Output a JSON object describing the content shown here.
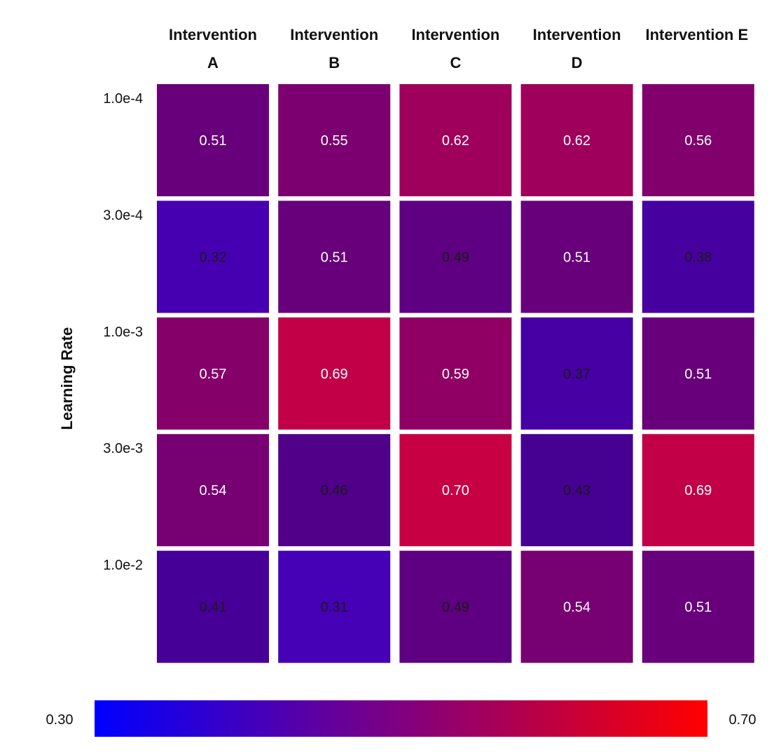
{
  "chart_data": {
    "type": "heatmap",
    "title": "",
    "xlabel": "",
    "ylabel": "Learning Rate",
    "columns": [
      "Intervention A",
      "Intervention B",
      "Intervention C",
      "Intervention D",
      "Intervention E"
    ],
    "rows": [
      "1.0e-4",
      "3.0e-4",
      "1.0e-3",
      "3.0e-3",
      "1.0e-2"
    ],
    "values": [
      [
        0.51,
        0.55,
        0.62,
        0.62,
        0.56
      ],
      [
        0.32,
        0.51,
        0.49,
        0.51,
        0.38
      ],
      [
        0.57,
        0.69,
        0.59,
        0.37,
        0.51
      ],
      [
        0.54,
        0.46,
        0.7,
        0.43,
        0.69
      ],
      [
        0.41,
        0.31,
        0.49,
        0.54,
        0.51
      ]
    ],
    "value_labels": [
      [
        "0.51",
        "0.55",
        "0.62",
        "0.62",
        "0.56"
      ],
      [
        "0.32",
        "0.51",
        "0.49",
        "0.51",
        "0.38"
      ],
      [
        "0.57",
        "0.69",
        "0.59",
        "0.37",
        "0.51"
      ],
      [
        "0.54",
        "0.46",
        "0.70",
        "0.43",
        "0.69"
      ],
      [
        "0.41",
        "0.31",
        "0.49",
        "0.54",
        "0.51"
      ]
    ],
    "vmin": 0.3,
    "vmax": 0.7,
    "colorbar": {
      "min_label": "0.30",
      "max_label": "0.70",
      "low_color": "#0000ff",
      "high_color": "#ff0000",
      "placement": "bottom"
    },
    "dark_text_threshold": 0.5,
    "text_color_light": "#ffffff",
    "text_color_dark": "#1a1a1a"
  }
}
